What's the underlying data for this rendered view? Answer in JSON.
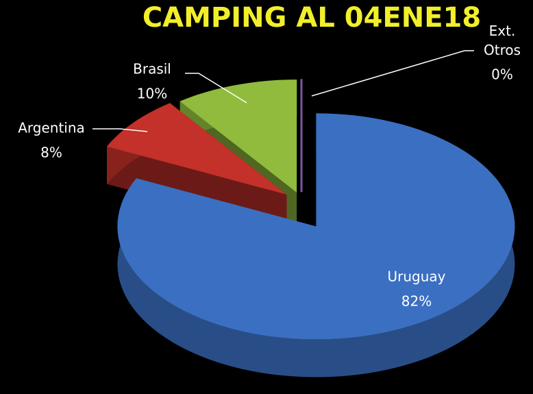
{
  "chart_data": {
    "type": "pie",
    "title": "CAMPING AL 04ENE18",
    "categories": [
      "Uruguay",
      "Argentina",
      "Brasil",
      "Ext. Otros"
    ],
    "values": [
      82,
      8,
      10,
      0
    ],
    "value_labels": [
      "82%",
      "8%",
      "10%",
      "0%"
    ],
    "colors": [
      "#3b6fc1",
      "#c4302a",
      "#90bb3c",
      "#7b55a8"
    ]
  }
}
